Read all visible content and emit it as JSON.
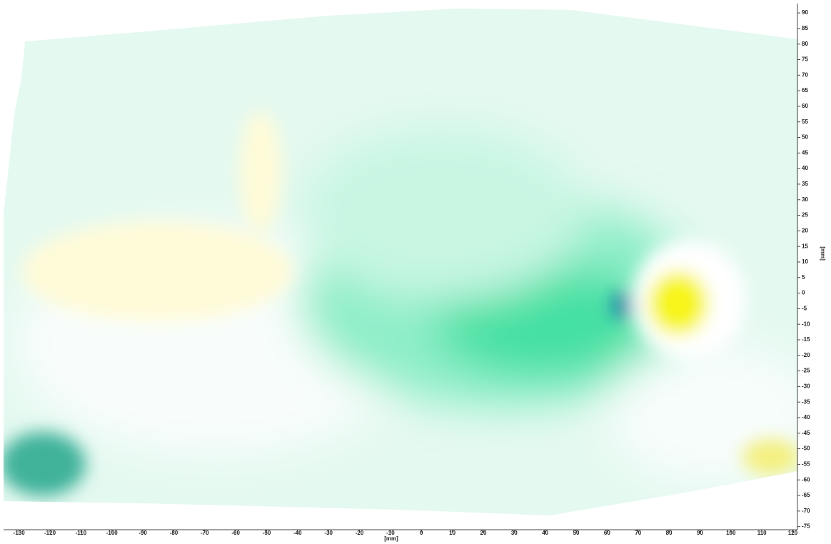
{
  "chart_data": {
    "type": "heatmap",
    "xlabel": "[mm]",
    "ylabel": "[mm]",
    "xlim": [
      -135,
      121.5
    ],
    "xticks": [
      -130,
      -120,
      -110,
      -100,
      -90,
      -80,
      -70,
      -60,
      -50,
      -40,
      -30,
      -20,
      -10,
      0,
      10,
      20,
      30,
      40,
      50,
      60,
      70,
      80,
      90,
      100,
      110,
      120
    ],
    "ylim": [
      -76,
      93
    ],
    "yticks": [
      -75,
      -70,
      -65,
      -60,
      -55,
      -50,
      -45,
      -40,
      -35,
      -30,
      -25,
      -20,
      -15,
      -10,
      -5,
      0,
      5,
      10,
      15,
      20,
      25,
      30,
      35,
      40,
      45,
      50,
      55,
      60,
      65,
      70,
      75,
      80,
      85,
      90
    ]
  }
}
